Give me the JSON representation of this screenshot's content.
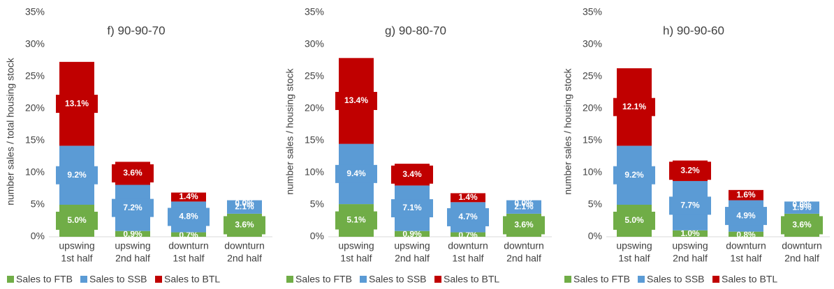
{
  "chart_data": [
    {
      "type": "bar",
      "stacked": true,
      "title": "f) 90-90-70",
      "ylabel": "number sales / total housing stock",
      "categories": [
        [
          "upswing",
          "1st half"
        ],
        [
          "upswing",
          "2nd half"
        ],
        [
          "downturn",
          "1st half"
        ],
        [
          "downturn",
          "2nd half"
        ]
      ],
      "series": [
        {
          "name": "Sales to FTB",
          "color": "#70ad47",
          "values": [
            5.0,
            0.9,
            0.7,
            3.6
          ],
          "value_labels": [
            "5.0%",
            "0.9%",
            "0.7%",
            "3.6%"
          ]
        },
        {
          "name": "Sales to SSB",
          "color": "#5b9bd5",
          "values": [
            9.2,
            7.2,
            4.8,
            2.1
          ],
          "value_labels": [
            "9.2%",
            "7.2%",
            "4.8%",
            "2.1%"
          ]
        },
        {
          "name": "Sales to BTL",
          "color": "#c00000",
          "values": [
            13.1,
            3.6,
            1.4,
            0.0
          ],
          "value_labels": [
            "13.1%",
            "3.6%",
            "1.4%",
            "0.0%"
          ]
        }
      ],
      "ylim": [
        0,
        35
      ],
      "yticks": [
        {
          "value": 0,
          "label": "0%"
        },
        {
          "value": 5,
          "label": "5%"
        },
        {
          "value": 10,
          "label": "10%"
        },
        {
          "value": 15,
          "label": "15%"
        },
        {
          "value": 20,
          "label": "20%"
        },
        {
          "value": 25,
          "label": "25%"
        },
        {
          "value": 30,
          "label": "30%"
        },
        {
          "value": 35,
          "label": "35%"
        }
      ]
    },
    {
      "type": "bar",
      "stacked": true,
      "title": "g) 90-80-70",
      "ylabel": "number sales / housing stock",
      "categories": [
        [
          "upswing",
          "1st half"
        ],
        [
          "upswing",
          "2nd half"
        ],
        [
          "downturn",
          "1st half"
        ],
        [
          "downturn",
          "2nd half"
        ]
      ],
      "series": [
        {
          "name": "Sales to FTB",
          "color": "#70ad47",
          "values": [
            5.1,
            0.9,
            0.7,
            3.6
          ],
          "value_labels": [
            "5.1%",
            "0.9%",
            "0.7%",
            "3.6%"
          ]
        },
        {
          "name": "Sales to SSB",
          "color": "#5b9bd5",
          "values": [
            9.4,
            7.1,
            4.7,
            2.1
          ],
          "value_labels": [
            "9.4%",
            "7.1%",
            "4.7%",
            "2.1%"
          ]
        },
        {
          "name": "Sales to BTL",
          "color": "#c00000",
          "values": [
            13.4,
            3.4,
            1.4,
            0.0
          ],
          "value_labels": [
            "13.4%",
            "3.4%",
            "1.4%",
            "0.0%"
          ]
        }
      ],
      "ylim": [
        0,
        35
      ],
      "yticks": [
        {
          "value": 0,
          "label": "0%"
        },
        {
          "value": 5,
          "label": "5%"
        },
        {
          "value": 10,
          "label": "10%"
        },
        {
          "value": 15,
          "label": "15%"
        },
        {
          "value": 20,
          "label": "20%"
        },
        {
          "value": 25,
          "label": "25%"
        },
        {
          "value": 30,
          "label": "30%"
        },
        {
          "value": 35,
          "label": "35%"
        }
      ]
    },
    {
      "type": "bar",
      "stacked": true,
      "title": "h) 90-90-60",
      "ylabel": "number sales / housing stock",
      "categories": [
        [
          "upswing",
          "1st half"
        ],
        [
          "upswing",
          "2nd half"
        ],
        [
          "downturn",
          "1st half"
        ],
        [
          "downturn",
          "2nd half"
        ]
      ],
      "series": [
        {
          "name": "Sales to FTB",
          "color": "#70ad47",
          "values": [
            5.0,
            1.0,
            0.8,
            3.6
          ],
          "value_labels": [
            "5.0%",
            "1.0%",
            "0.8%",
            "3.6%"
          ]
        },
        {
          "name": "Sales to SSB",
          "color": "#5b9bd5",
          "values": [
            9.2,
            7.7,
            4.9,
            1.9
          ],
          "value_labels": [
            "9.2%",
            "7.7%",
            "4.9%",
            "1.9%"
          ]
        },
        {
          "name": "Sales to BTL",
          "color": "#c00000",
          "values": [
            12.1,
            3.2,
            1.6,
            0.0
          ],
          "value_labels": [
            "12.1%",
            "3.2%",
            "1.6%",
            "0.0%"
          ]
        }
      ],
      "ylim": [
        0,
        35
      ],
      "yticks": [
        {
          "value": 0,
          "label": "0%"
        },
        {
          "value": 5,
          "label": "5%"
        },
        {
          "value": 10,
          "label": "10%"
        },
        {
          "value": 15,
          "label": "15%"
        },
        {
          "value": 20,
          "label": "20%"
        },
        {
          "value": 25,
          "label": "25%"
        },
        {
          "value": 30,
          "label": "30%"
        },
        {
          "value": 35,
          "label": "35%"
        }
      ]
    }
  ]
}
